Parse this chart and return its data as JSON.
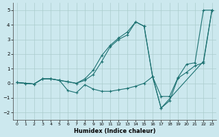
{
  "xlabel": "Humidex (Indice chaleur)",
  "background_color": "#cce8ee",
  "grid_color": "#aacccc",
  "line_color": "#1a7070",
  "xlim": [
    -0.5,
    23.5
  ],
  "ylim": [
    -2.5,
    5.5
  ],
  "xticks": [
    0,
    1,
    2,
    3,
    4,
    5,
    6,
    7,
    8,
    9,
    10,
    11,
    12,
    13,
    14,
    15,
    16,
    17,
    18,
    19,
    20,
    21,
    22,
    23
  ],
  "yticks": [
    -2,
    -1,
    0,
    1,
    2,
    3,
    4,
    5
  ],
  "lines": [
    {
      "x": [
        0,
        1,
        2,
        3,
        4,
        5,
        6,
        7,
        8,
        9,
        10,
        11,
        12,
        13,
        14,
        15,
        16,
        17,
        18,
        19,
        20,
        21,
        22,
        23
      ],
      "y": [
        0.05,
        0.0,
        -0.05,
        0.3,
        0.3,
        0.2,
        0.1,
        0.0,
        0.2,
        0.6,
        1.5,
        2.5,
        3.0,
        3.3,
        4.2,
        3.9,
        0.45,
        -0.9,
        -0.9,
        0.4,
        1.3,
        1.4,
        5.0,
        5.0
      ]
    },
    {
      "x": [
        0,
        1,
        2,
        3,
        4,
        5,
        6,
        7,
        8,
        9,
        10,
        11,
        12,
        13,
        14,
        15,
        16,
        17,
        22,
        23
      ],
      "y": [
        0.05,
        0.0,
        -0.05,
        0.3,
        0.3,
        0.2,
        0.1,
        0.0,
        0.3,
        0.9,
        1.9,
        2.6,
        3.1,
        3.5,
        4.2,
        3.9,
        0.45,
        -1.7,
        1.5,
        5.0
      ]
    },
    {
      "x": [
        0,
        1,
        2,
        3,
        4,
        5,
        6,
        7,
        8,
        9,
        10,
        11,
        12,
        13,
        14,
        15,
        16,
        17,
        18,
        19,
        20,
        21,
        22,
        23
      ],
      "y": [
        0.05,
        0.0,
        -0.05,
        0.3,
        0.3,
        0.2,
        -0.5,
        -0.65,
        -0.1,
        -0.4,
        -0.55,
        -0.55,
        -0.45,
        -0.35,
        -0.2,
        0.0,
        0.45,
        -1.7,
        -1.2,
        0.35,
        0.75,
        1.2,
        1.4,
        5.0
      ]
    }
  ]
}
